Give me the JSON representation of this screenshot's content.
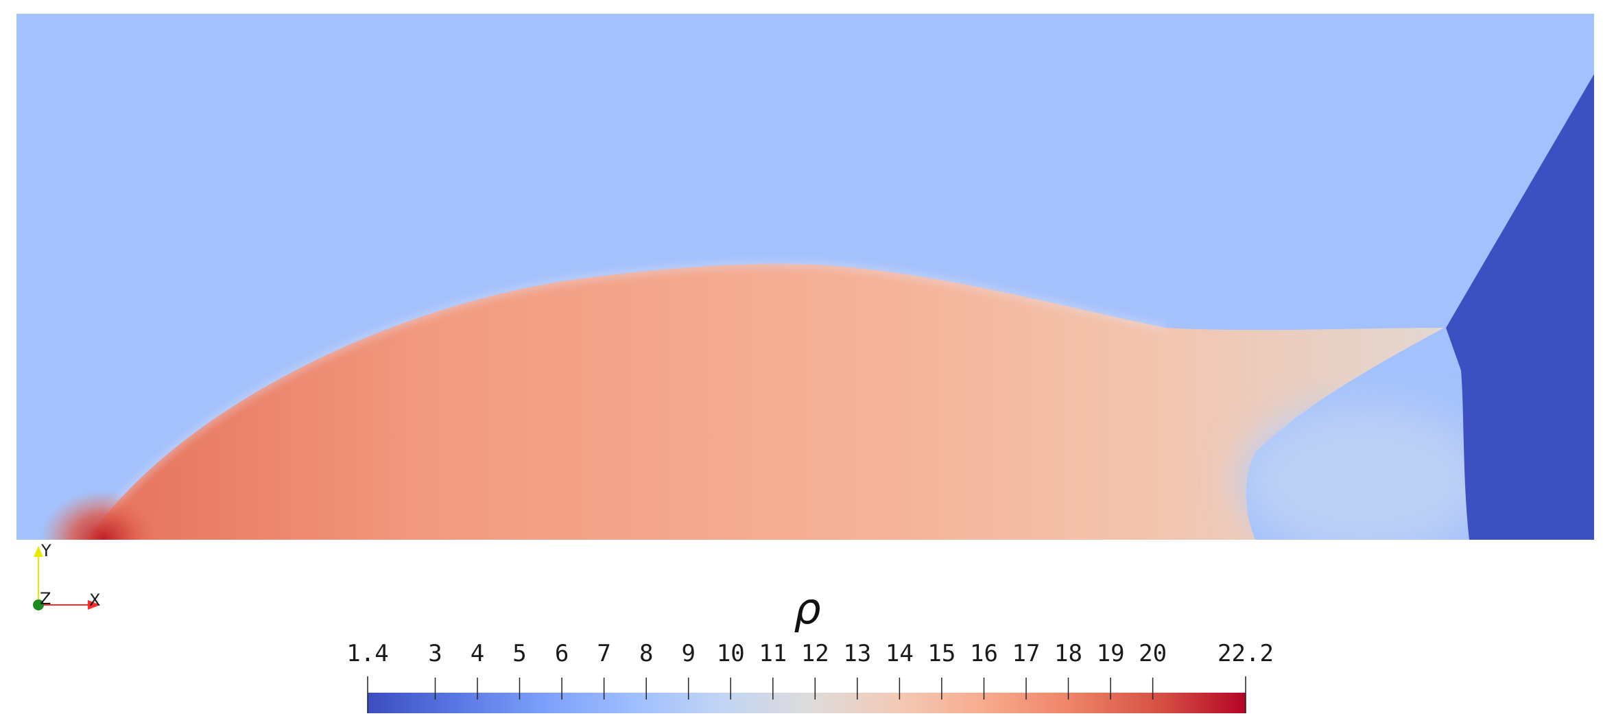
{
  "field": {
    "variable_symbol": "ρ",
    "colormap": [
      "#3b4cc0",
      "#5977e3",
      "#7b9ff9",
      "#9ebeff",
      "#c0d4f5",
      "#dddcdc",
      "#f2cbb7",
      "#f7ac8e",
      "#ee8468",
      "#d65244",
      "#b40426"
    ],
    "ambient_color": "#a3c1fc",
    "shock_layer_color": "#f4ad8f",
    "stagnation_color": "#c0202a",
    "exit_region_color": "#3c50c1",
    "wake_color": "#bcd0f6"
  },
  "orientation_axes": {
    "y_label": "Y",
    "z_label": "Z",
    "x_label": "X",
    "y_color": "#e8e800",
    "x_color": "#ff2a2a",
    "z_color": "#1f8a1f"
  },
  "colorbar": {
    "title": "ρ",
    "min": 1.4,
    "max": 22.2,
    "tick_labels": [
      "1.4",
      "3",
      "4",
      "5",
      "6",
      "7",
      "8",
      "9",
      "10",
      "11",
      "12",
      "13",
      "14",
      "15",
      "16",
      "17",
      "18",
      "19",
      "20",
      "22.2"
    ],
    "tick_values": [
      1.4,
      3,
      4,
      5,
      6,
      7,
      8,
      9,
      10,
      11,
      12,
      13,
      14,
      15,
      16,
      17,
      18,
      19,
      20,
      22.2
    ]
  }
}
